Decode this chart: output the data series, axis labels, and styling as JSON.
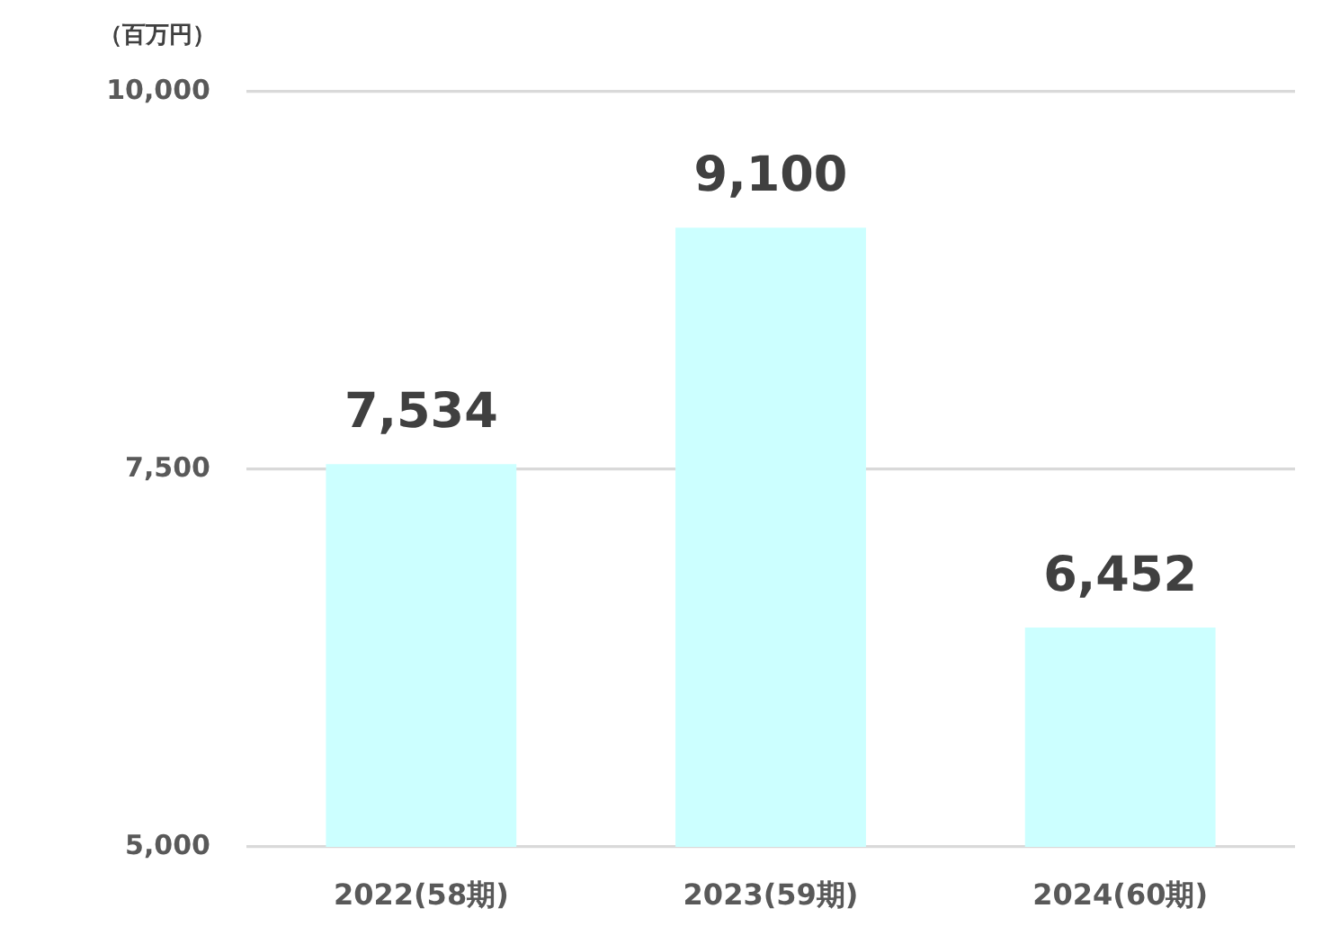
{
  "chart_data": {
    "type": "bar",
    "ylabel": "（百万円）",
    "categories": [
      "2022(58期)",
      "2023(59期)",
      "2024(60期)"
    ],
    "values": [
      7534,
      9100,
      6452
    ],
    "value_labels": [
      "7,534",
      "9,100",
      "6,452"
    ],
    "color": "#ccffff",
    "ylim": [
      5000,
      10000
    ],
    "yticks": [
      {
        "value": 5000,
        "label": "5,000"
      },
      {
        "value": 7500,
        "label": "7,500"
      },
      {
        "value": 10000,
        "label": "10,000"
      }
    ],
    "grid": "y"
  }
}
